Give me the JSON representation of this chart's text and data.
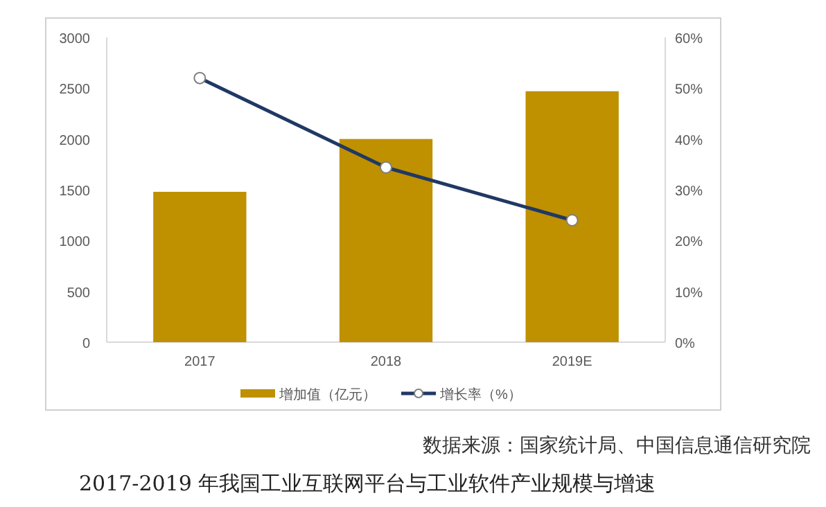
{
  "chart_data": {
    "type": "bar",
    "title": "2017-2019 年我国工业互联网平台与工业软件产业规模与增速",
    "categories": [
      "2017",
      "2018",
      "2019E"
    ],
    "series": [
      {
        "name": "增加值（亿元）",
        "color": "#bf9000",
        "values": [
          1480,
          2000,
          2470
        ]
      },
      {
        "name": "增长率（%）",
        "type": "line",
        "axis": "y2",
        "color": "#203864",
        "marker": "circle",
        "values": [
          52,
          34.4,
          24
        ]
      }
    ],
    "ylim": [
      0,
      3000
    ],
    "yticks": [
      0,
      500,
      1000,
      1500,
      2000,
      2500,
      3000
    ],
    "y2lim": [
      0,
      60
    ],
    "y2ticks": [
      {
        "value": 0,
        "label": "0%"
      },
      {
        "value": 10,
        "label": "10%"
      },
      {
        "value": 20,
        "label": "20%"
      },
      {
        "value": 30,
        "label": "30%"
      },
      {
        "value": 40,
        "label": "40%"
      },
      {
        "value": 50,
        "label": "50%"
      },
      {
        "value": 60,
        "label": "60%"
      }
    ],
    "legend": "bottom",
    "grid": false,
    "annotations": [
      "数据来源：国家统计局、中国信息通信研究院"
    ]
  }
}
